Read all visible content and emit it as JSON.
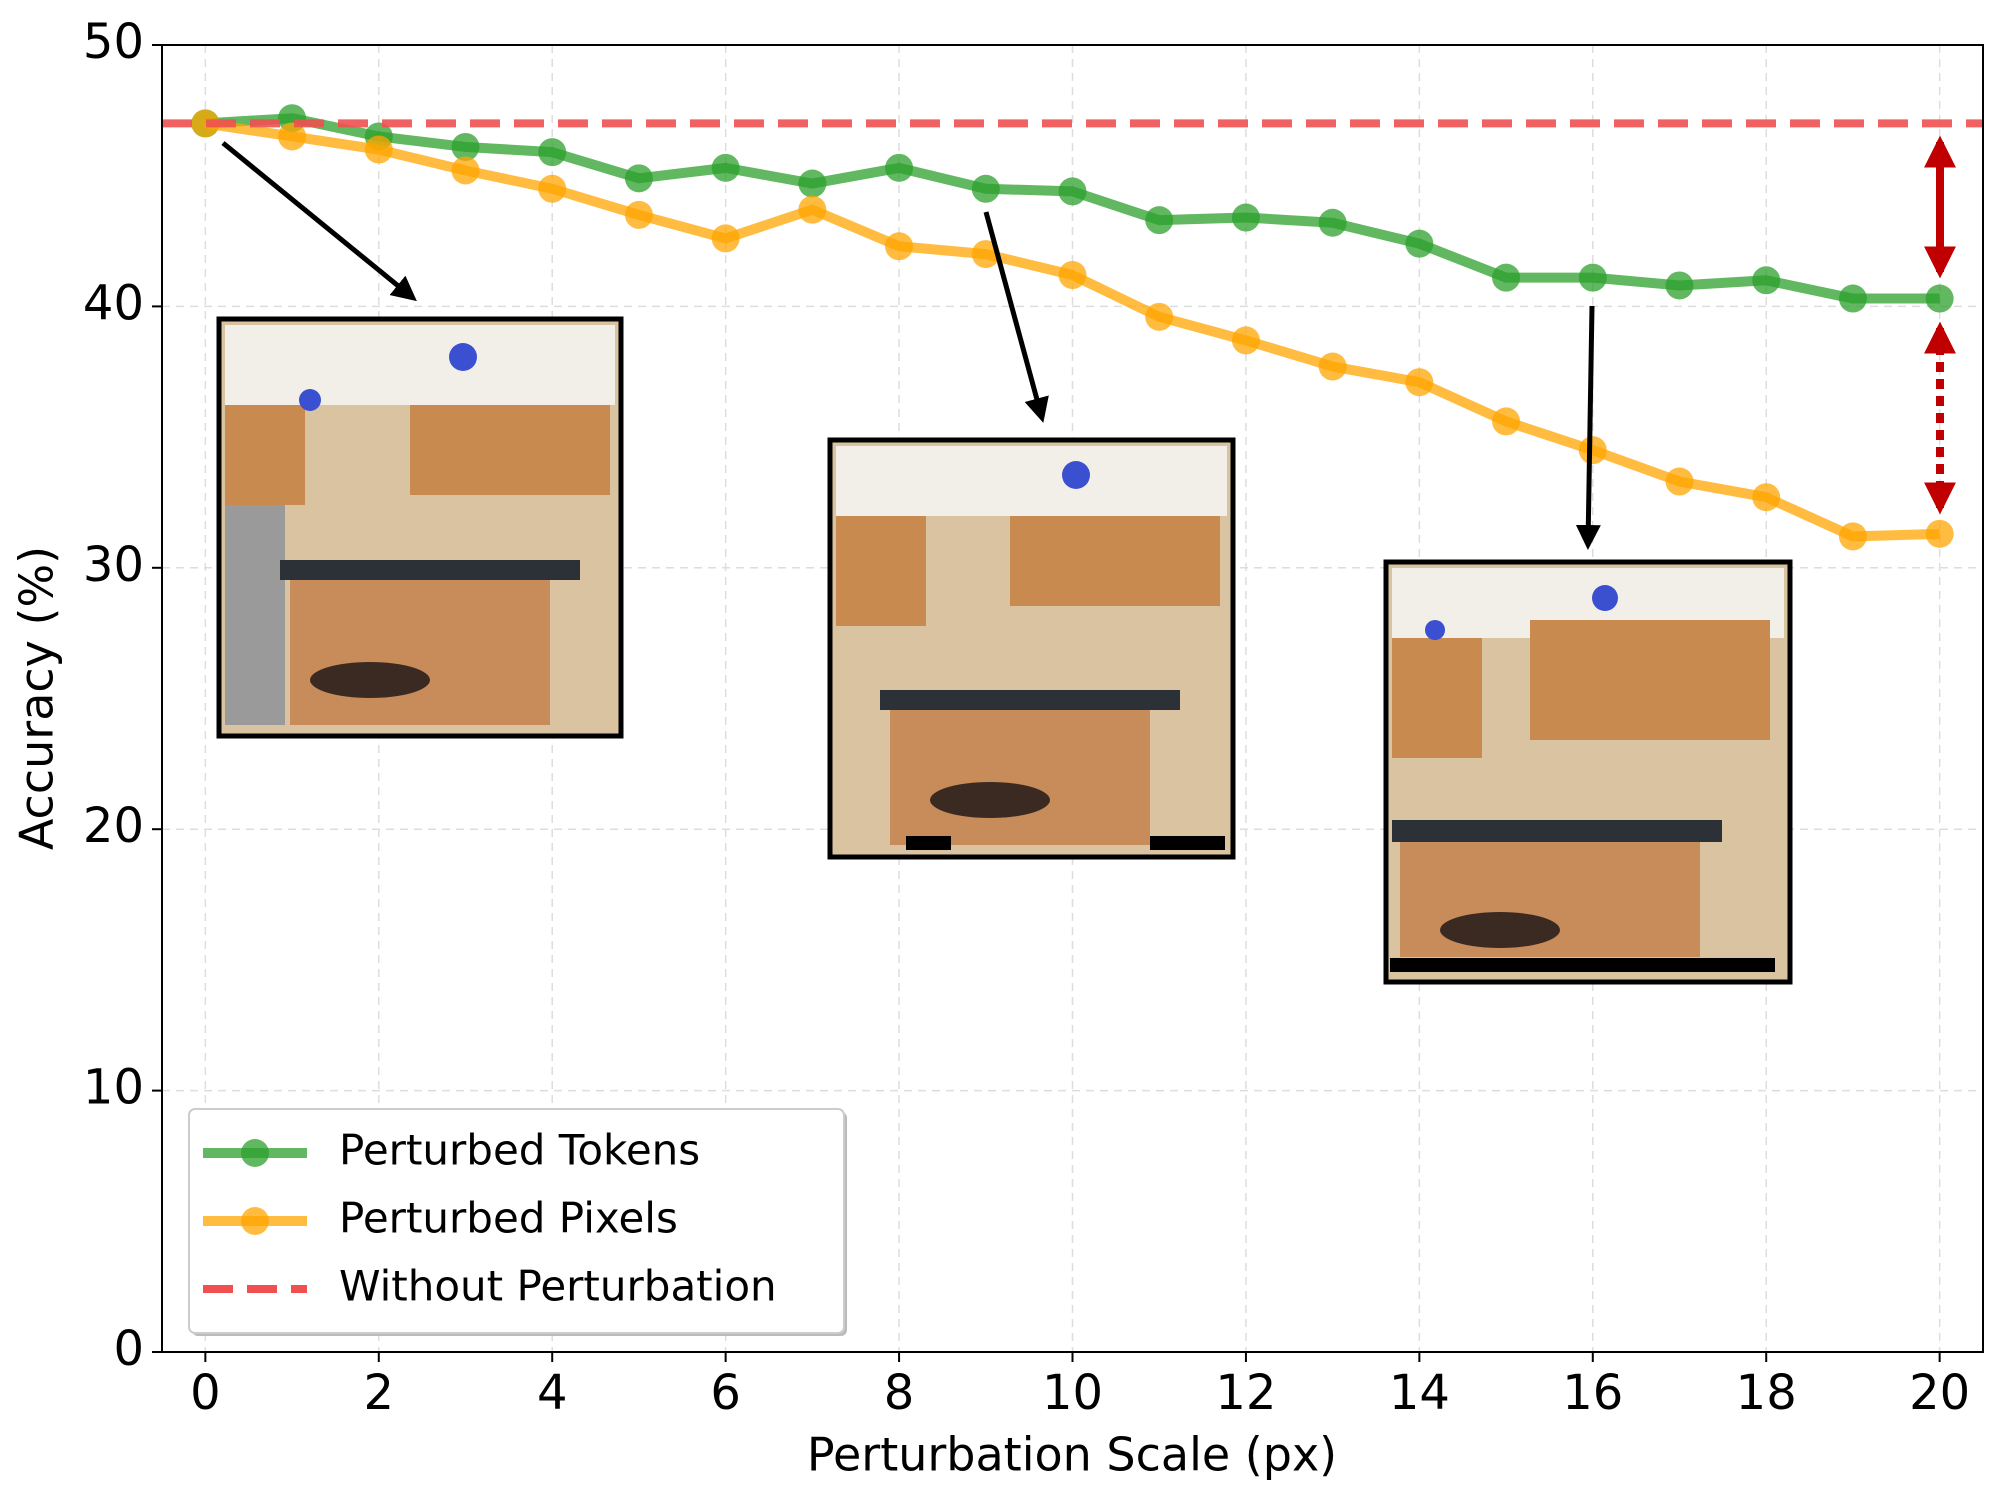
{
  "chart_data": {
    "type": "line",
    "x_label": "Perturbation Scale (px)",
    "y_label": "Accuracy (%)",
    "x": [
      0,
      1,
      2,
      3,
      4,
      5,
      6,
      7,
      8,
      9,
      10,
      11,
      12,
      13,
      14,
      15,
      16,
      17,
      18,
      19,
      20
    ],
    "series": [
      {
        "name": "Perturbed Tokens",
        "color": "#2ca02c",
        "values": [
          47.0,
          47.2,
          46.5,
          46.1,
          45.9,
          44.9,
          45.3,
          44.7,
          45.3,
          44.5,
          44.4,
          43.3,
          43.4,
          43.2,
          42.4,
          41.1,
          41.1,
          40.8,
          41.0,
          40.3,
          40.3
        ]
      },
      {
        "name": "Perturbed Pixels",
        "color": "#ffa500",
        "values": [
          47.0,
          46.5,
          46.0,
          45.2,
          44.5,
          43.5,
          42.6,
          43.7,
          42.3,
          42.0,
          41.2,
          39.6,
          38.7,
          37.7,
          37.1,
          35.6,
          34.5,
          33.3,
          32.7,
          31.2,
          31.3
        ]
      }
    ],
    "reference_line": {
      "name": "Without Perturbation",
      "value": 47,
      "color": "#f05050"
    },
    "xlim": [
      -0.5,
      20.5
    ],
    "ylim": [
      0,
      50
    ],
    "xticks": [
      0,
      2,
      4,
      6,
      8,
      10,
      12,
      14,
      16,
      18,
      20
    ],
    "yticks": [
      0,
      10,
      20,
      30,
      40,
      50
    ],
    "grid": true,
    "legend": "lower left"
  }
}
